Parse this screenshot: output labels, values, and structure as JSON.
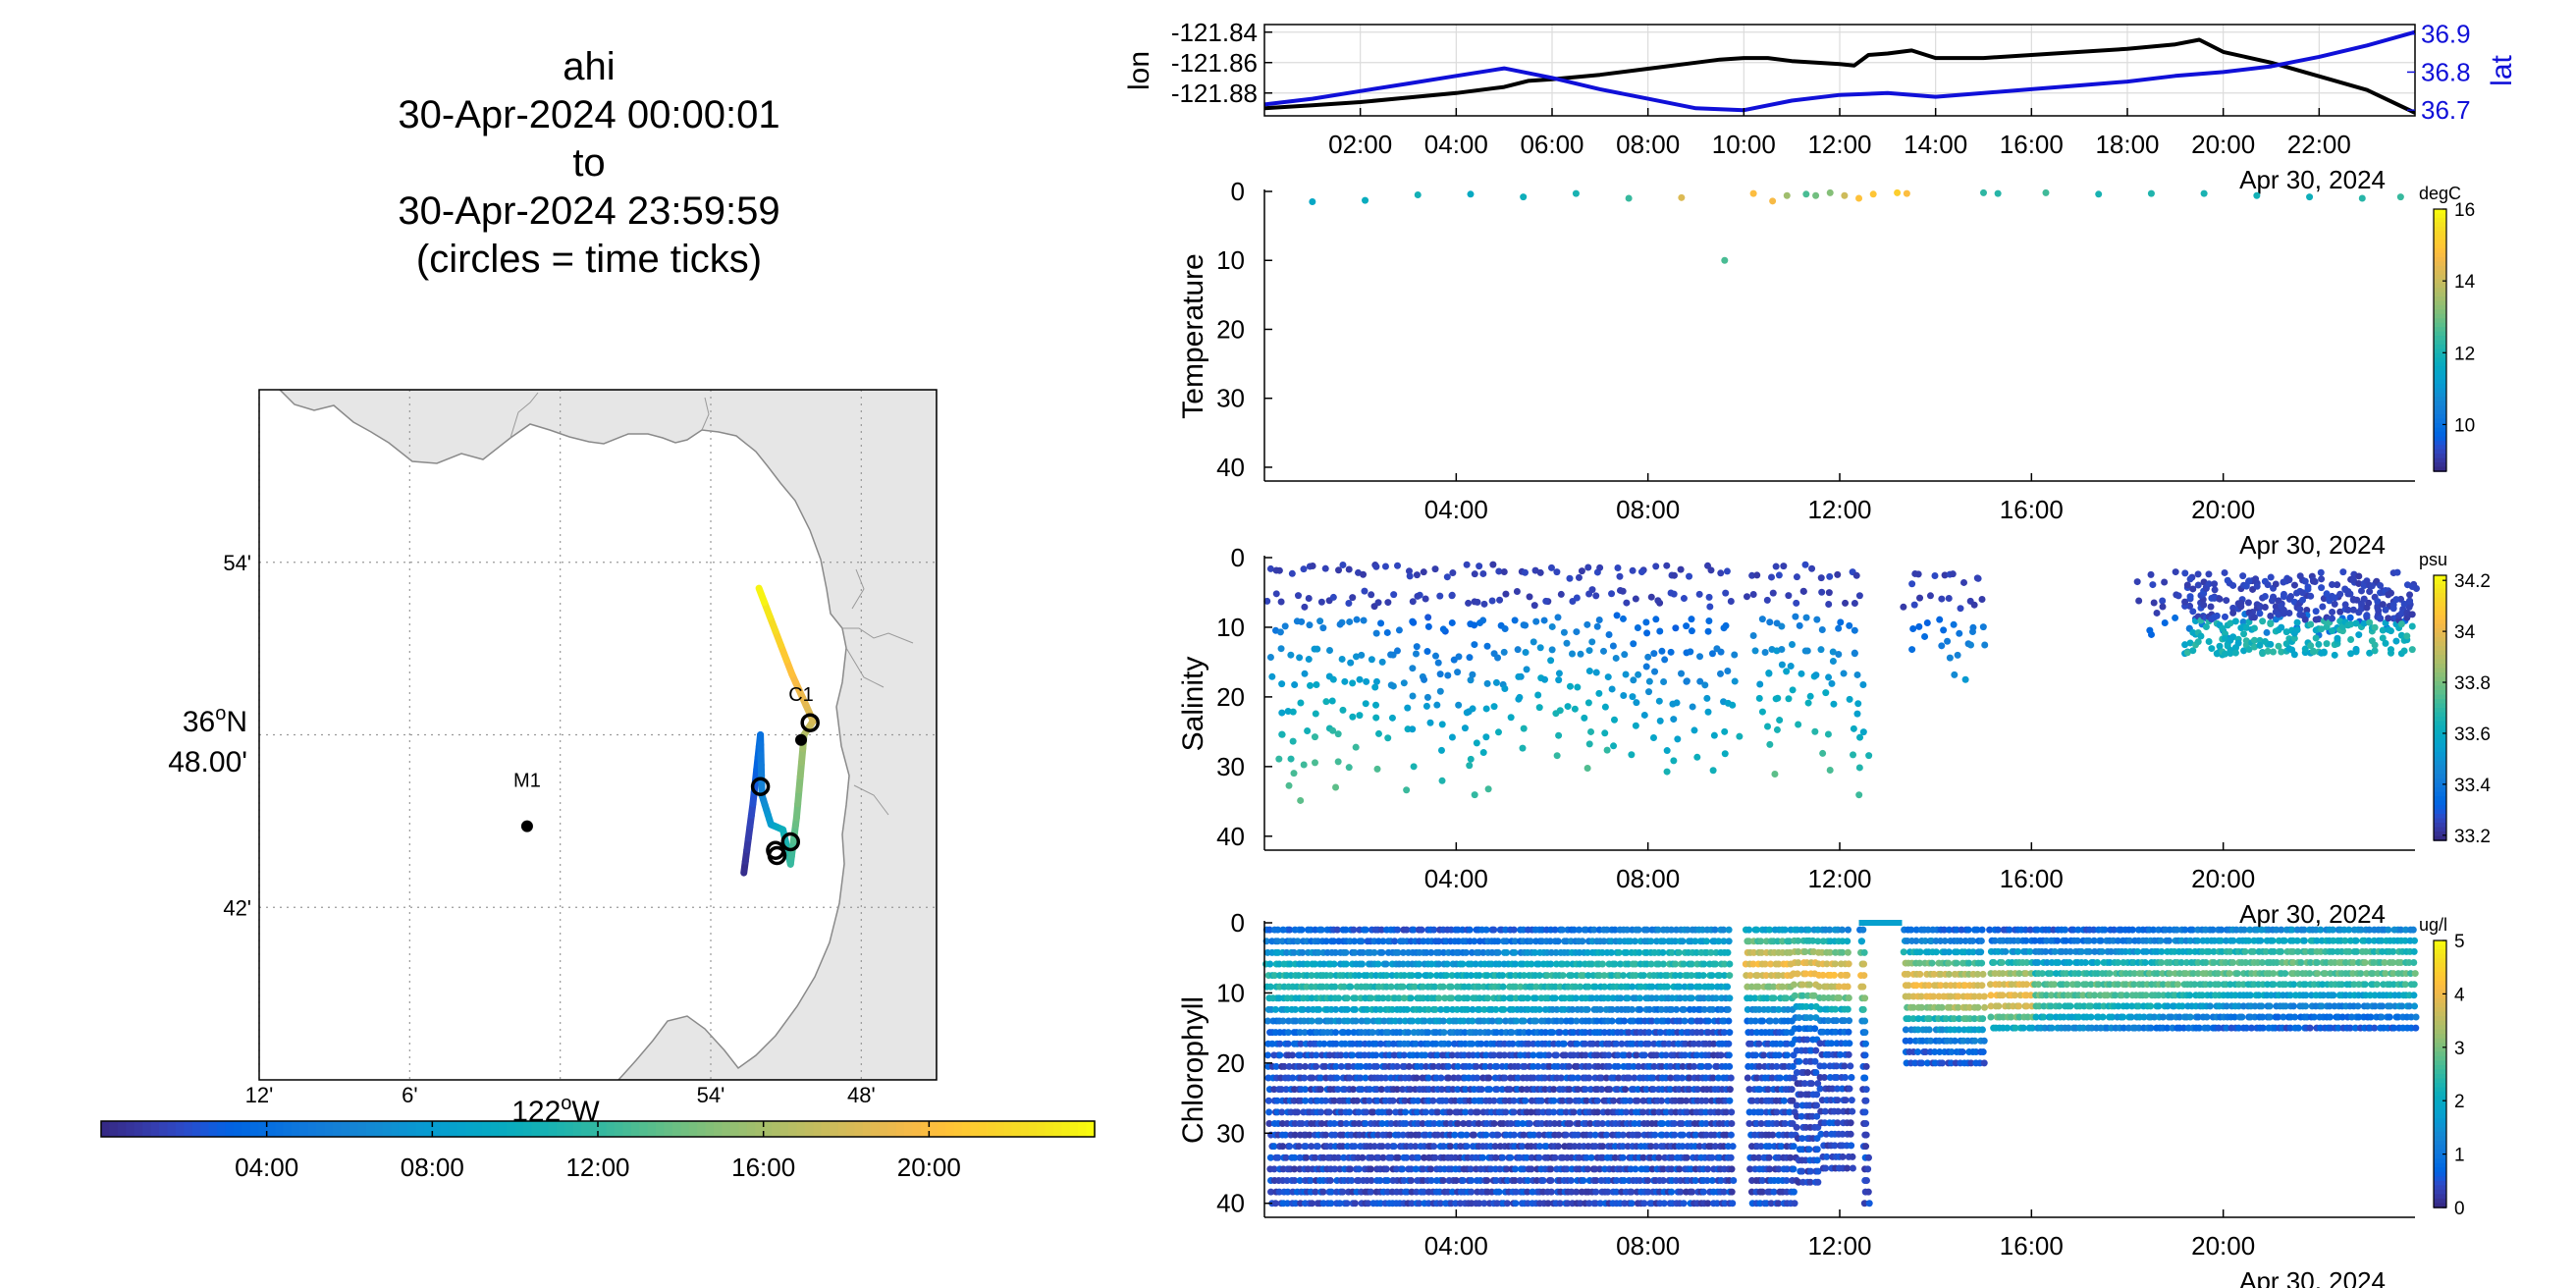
{
  "title": {
    "platform": "ahi",
    "start": "30-Apr-2024 00:00:01",
    "to": "to",
    "end": "30-Apr-2024 23:59:59",
    "note": "(circles = time ticks)"
  },
  "colors": {
    "lon_line": "#000000",
    "lat_line": "#1010d8",
    "land": "#e6e6e6",
    "station": "#000000",
    "palette_name": "parula"
  },
  "chart_data": [
    {
      "id": "track-map",
      "type": "map",
      "title": "",
      "x_ticks": [
        "12'",
        "6'",
        "54'",
        "48'"
      ],
      "x_tick_lon": [
        -122.2,
        -122.1,
        -121.9,
        -121.8
      ],
      "x_center_label": "122",
      "x_center_suffix": "W",
      "y_ticks": [
        "54'",
        "42'"
      ],
      "y_tick_lat": [
        36.9,
        36.7
      ],
      "y_center_label_top": "36",
      "y_center_label_suffix": "N",
      "y_center_label_bottom": "48.00'",
      "xlim": [
        -122.2,
        -121.75
      ],
      "ylim": [
        36.6,
        37.0
      ],
      "grid": true,
      "stations": [
        {
          "name": "C1",
          "lon": -121.84,
          "lat": 36.797
        },
        {
          "name": "M1",
          "lon": -122.022,
          "lat": 36.747
        }
      ],
      "track": [
        {
          "lon": -121.878,
          "lat": 36.72,
          "t": 0
        },
        {
          "lon": -121.872,
          "lat": 36.76,
          "t": 2
        },
        {
          "lon": -121.867,
          "lat": 36.8,
          "t": 4
        },
        {
          "lon": -121.866,
          "lat": 36.765,
          "t": 6
        },
        {
          "lon": -121.86,
          "lat": 36.748,
          "t": 8
        },
        {
          "lon": -121.852,
          "lat": 36.745,
          "t": 10
        },
        {
          "lon": -121.847,
          "lat": 36.725,
          "t": 12
        },
        {
          "lon": -121.843,
          "lat": 36.752,
          "t": 14
        },
        {
          "lon": -121.838,
          "lat": 36.8,
          "t": 16
        },
        {
          "lon": -121.832,
          "lat": 36.808,
          "t": 18
        },
        {
          "lon": -121.846,
          "lat": 36.835,
          "t": 20
        },
        {
          "lon": -121.868,
          "lat": 36.885,
          "t": 24
        }
      ],
      "time_ticks": [
        {
          "lon": -121.867,
          "lat": 36.77
        },
        {
          "lon": -121.857,
          "lat": 36.733
        },
        {
          "lon": -121.856,
          "lat": 36.73
        },
        {
          "lon": -121.847,
          "lat": 36.738
        },
        {
          "lon": -121.834,
          "lat": 36.807
        }
      ],
      "colorbar": {
        "ticks": [
          "04:00",
          "08:00",
          "12:00",
          "16:00",
          "20:00"
        ],
        "tick_hours": [
          4,
          8,
          12,
          16,
          20
        ],
        "range_hours": [
          0,
          24
        ]
      }
    },
    {
      "id": "lon-lat",
      "type": "line",
      "title": "",
      "xlabel": "",
      "date_label": "Apr 30, 2024",
      "x_ticks": [
        "02:00",
        "04:00",
        "06:00",
        "08:00",
        "10:00",
        "12:00",
        "14:00",
        "16:00",
        "18:00",
        "20:00",
        "22:00"
      ],
      "x_tick_hours": [
        2,
        4,
        6,
        8,
        10,
        12,
        14,
        16,
        18,
        20,
        22
      ],
      "xlim_hours": [
        0,
        24
      ],
      "y_left": {
        "label": "lon",
        "ticks": [
          "-121.84",
          "-121.86",
          "-121.88"
        ],
        "tick_values": [
          -121.84,
          -121.86,
          -121.88
        ],
        "ylim": [
          -121.895,
          -121.835
        ]
      },
      "y_right": {
        "label": "lat",
        "ticks": [
          "36.9",
          "36.8",
          "36.7"
        ],
        "tick_values": [
          36.9,
          36.8,
          36.7
        ],
        "ylim": [
          36.685,
          36.925
        ]
      },
      "grid": true,
      "series": [
        {
          "name": "lon",
          "axis": "left",
          "x": [
            0,
            1,
            2,
            3,
            4,
            5,
            5.5,
            6,
            7,
            8,
            9,
            9.5,
            10,
            10.5,
            11,
            12,
            12.3,
            12.6,
            13,
            13.5,
            14,
            15,
            16,
            17,
            18,
            19,
            19.5,
            20,
            21,
            22,
            23,
            24
          ],
          "y": [
            -121.89,
            -121.888,
            -121.886,
            -121.883,
            -121.88,
            -121.876,
            -121.872,
            -121.871,
            -121.868,
            -121.864,
            -121.86,
            -121.858,
            -121.857,
            -121.857,
            -121.859,
            -121.861,
            -121.862,
            -121.855,
            -121.854,
            -121.852,
            -121.857,
            -121.857,
            -121.855,
            -121.853,
            -121.851,
            -121.848,
            -121.845,
            -121.853,
            -121.86,
            -121.869,
            -121.878,
            -121.893
          ]
        },
        {
          "name": "lat",
          "axis": "right",
          "x": [
            0,
            1,
            2,
            3,
            4,
            5,
            6,
            7,
            8,
            9,
            10,
            11,
            12,
            13,
            14,
            15,
            16,
            17,
            18,
            19,
            20,
            21,
            22,
            23,
            24
          ],
          "y": [
            36.715,
            36.73,
            36.75,
            36.77,
            36.79,
            36.81,
            36.785,
            36.755,
            36.73,
            36.705,
            36.7,
            36.725,
            36.74,
            36.745,
            36.735,
            36.745,
            36.755,
            36.765,
            36.775,
            36.79,
            36.8,
            36.815,
            36.84,
            36.87,
            36.905
          ]
        }
      ]
    },
    {
      "id": "temperature",
      "type": "scatter",
      "title": "",
      "ylabel": "Temperature",
      "units": "degC",
      "date_label": "Apr 30, 2024",
      "x_ticks": [
        "04:00",
        "08:00",
        "12:00",
        "16:00",
        "20:00"
      ],
      "x_tick_hours": [
        4,
        8,
        12,
        16,
        20
      ],
      "xlim_hours": [
        0,
        24
      ],
      "y_ticks": [
        "0",
        "10",
        "20",
        "30",
        "40"
      ],
      "y_tick_values": [
        0,
        10,
        20,
        30,
        40
      ],
      "ylim": [
        0,
        42
      ],
      "y_reversed": true,
      "colorbar": {
        "ticks": [
          "16",
          "14",
          "12",
          "10"
        ],
        "tick_values": [
          16,
          14,
          12,
          10
        ],
        "range": [
          8.7,
          16
        ]
      },
      "points": [
        [
          1.0,
          1.5,
          11.5
        ],
        [
          2.1,
          1.3,
          11.7
        ],
        [
          3.2,
          0.5,
          11.9
        ],
        [
          4.3,
          0.4,
          11.6
        ],
        [
          5.4,
          0.8,
          11.8
        ],
        [
          6.5,
          0.3,
          12.0
        ],
        [
          7.6,
          1.0,
          12.4
        ],
        [
          8.7,
          0.9,
          14.3
        ],
        [
          9.6,
          10.0,
          12.6
        ],
        [
          10.2,
          0.3,
          14.8
        ],
        [
          10.6,
          1.4,
          14.7
        ],
        [
          10.9,
          0.6,
          13.5
        ],
        [
          11.3,
          0.4,
          12.6
        ],
        [
          11.5,
          0.6,
          13.0
        ],
        [
          11.8,
          0.2,
          13.2
        ],
        [
          12.1,
          0.6,
          14.1
        ],
        [
          12.4,
          1.0,
          14.9
        ],
        [
          12.7,
          0.4,
          15.0
        ],
        [
          13.2,
          0.2,
          15.2
        ],
        [
          13.4,
          0.3,
          14.8
        ],
        [
          15.0,
          0.2,
          12.3
        ],
        [
          15.3,
          0.3,
          12.2
        ],
        [
          16.3,
          0.2,
          12.5
        ],
        [
          17.4,
          0.4,
          12.0
        ],
        [
          18.5,
          0.3,
          12.1
        ],
        [
          19.6,
          0.3,
          12.0
        ],
        [
          20.7,
          0.6,
          11.9
        ],
        [
          21.8,
          0.8,
          11.8
        ],
        [
          22.9,
          1.0,
          12.2
        ],
        [
          23.7,
          0.8,
          12.4
        ]
      ]
    },
    {
      "id": "salinity",
      "type": "scatter",
      "title": "",
      "ylabel": "Salinity",
      "units": "psu",
      "date_label": "Apr 30, 2024",
      "x_ticks": [
        "04:00",
        "08:00",
        "12:00",
        "16:00",
        "20:00"
      ],
      "x_tick_hours": [
        4,
        8,
        12,
        16,
        20
      ],
      "xlim_hours": [
        0,
        24
      ],
      "y_ticks": [
        "0",
        "10",
        "20",
        "30",
        "40"
      ],
      "y_tick_values": [
        0,
        10,
        20,
        30,
        40
      ],
      "ylim": [
        0,
        42
      ],
      "y_reversed": true,
      "colorbar": {
        "ticks": [
          "34.2",
          "34",
          "33.8",
          "33.6",
          "33.4",
          "33.2"
        ],
        "tick_values": [
          34.2,
          34,
          33.8,
          33.6,
          33.4,
          33.2
        ],
        "range": [
          33.18,
          34.22
        ]
      },
      "profiles": {
        "casts_per_hour": 6,
        "segments": [
          [
            0,
            9.7,
            1,
            38
          ],
          [
            10.0,
            12.4,
            1,
            37
          ],
          [
            13.3,
            15.0,
            2,
            20
          ],
          [
            18.2,
            24.0,
            2,
            14
          ]
        ],
        "dense_band": [
          19.2,
          24.0,
          3,
          14
        ]
      }
    },
    {
      "id": "chlorophyll",
      "type": "scatter",
      "title": "",
      "ylabel": "Chlorophyll",
      "units": "ug/l",
      "date_label": "Apr 30, 2024",
      "x_ticks": [
        "04:00",
        "08:00",
        "12:00",
        "16:00",
        "20:00"
      ],
      "x_tick_hours": [
        4,
        8,
        12,
        16,
        20
      ],
      "xlim_hours": [
        0,
        24
      ],
      "y_ticks": [
        "0",
        "10",
        "20",
        "30",
        "40"
      ],
      "y_tick_values": [
        0,
        10,
        20,
        30,
        40
      ],
      "ylim": [
        0,
        42
      ],
      "y_reversed": true,
      "colorbar": {
        "ticks": [
          "5",
          "4",
          "3",
          "2",
          "1",
          "0"
        ],
        "tick_values": [
          5,
          4,
          3,
          2,
          1,
          0
        ],
        "range": [
          0,
          5
        ]
      },
      "profiles": {
        "casts_per_hour": 12,
        "segments": [
          [
            0,
            9.7,
            1,
            40
          ],
          [
            10.0,
            11.0,
            1,
            40
          ],
          [
            11.0,
            11.5,
            1,
            37
          ],
          [
            11.5,
            12.2,
            1,
            35
          ],
          [
            12.4,
            12.5,
            1,
            40
          ],
          [
            13.3,
            15.0,
            1,
            20
          ],
          [
            15.1,
            24.0,
            1,
            15
          ]
        ],
        "surface_line": [
          12.4,
          13.3,
          0
        ]
      }
    }
  ]
}
